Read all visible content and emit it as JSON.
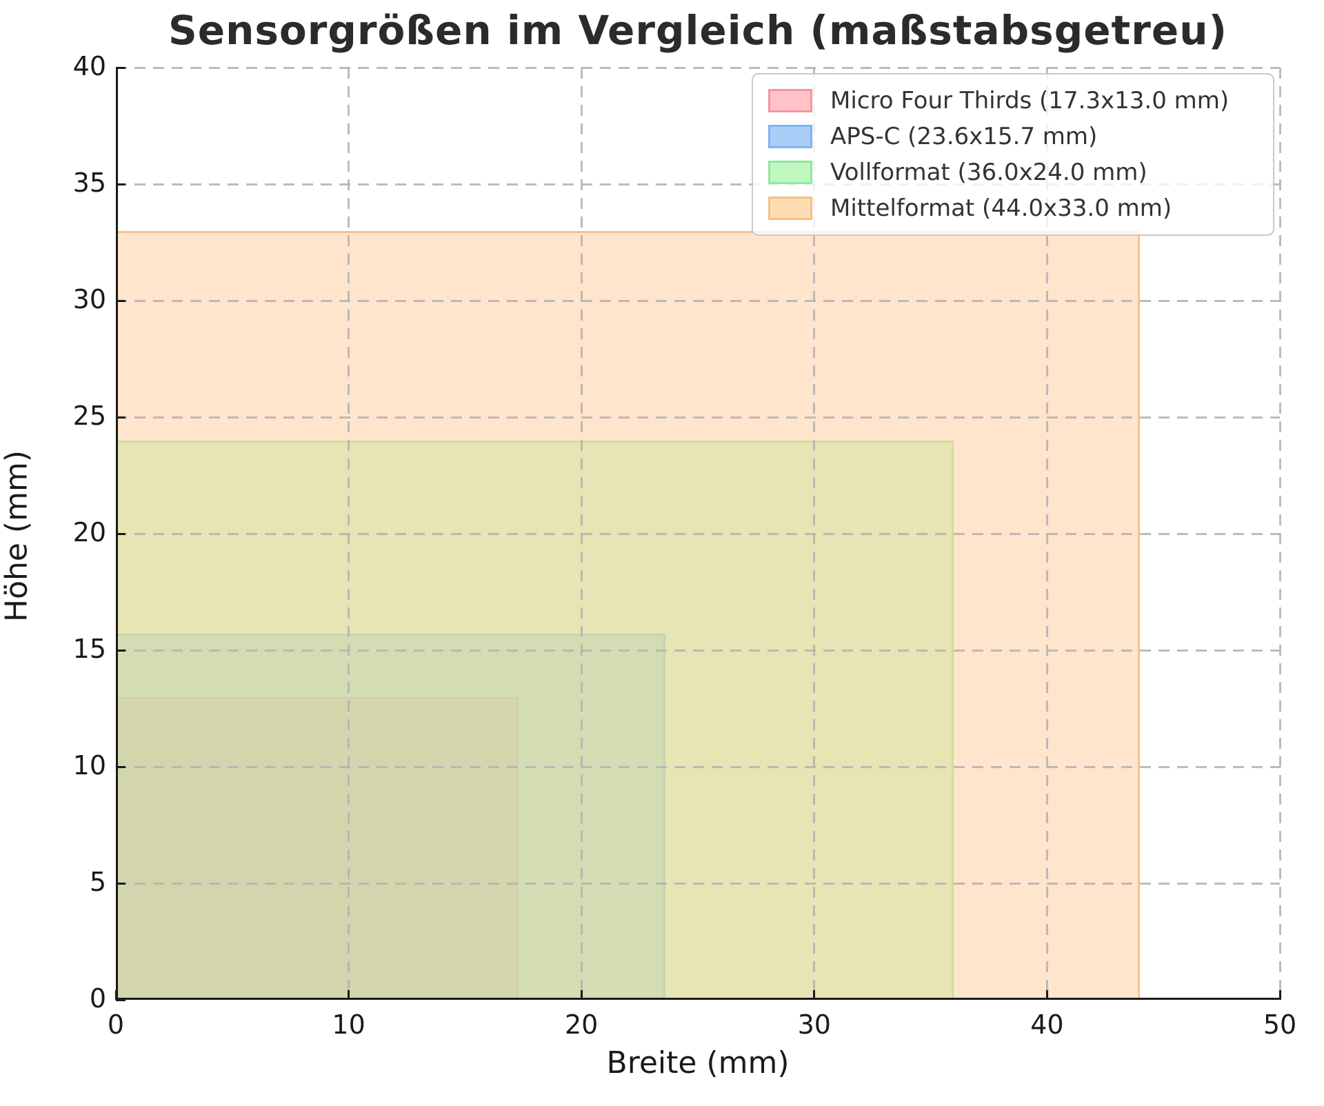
{
  "figure": {
    "title": "Sensorgrößen im Vergleich (maßstabsgetreu)"
  },
  "chart_data": {
    "type": "area",
    "subtype": "nested-rectangles-to-scale",
    "title": "Sensorgrößen im Vergleich (maßstabsgetreu)",
    "xlabel": "Breite (mm)",
    "ylabel": "Höhe (mm)",
    "xlim": [
      0,
      50
    ],
    "ylim": [
      0,
      40
    ],
    "xticks": [
      0,
      10,
      20,
      30,
      40,
      50
    ],
    "yticks": [
      0,
      5,
      10,
      15,
      20,
      25,
      30,
      35,
      40
    ],
    "grid": true,
    "grid_style": "dashed",
    "grid_color": "#b4b4b4",
    "legend_position": "upper-right",
    "series": [
      {
        "name": "Micro Four Thirds",
        "legend_label": "Micro Four Thirds (17.3x13.0 mm)",
        "width_mm": 17.3,
        "height_mm": 13.0,
        "x0_mm": 0,
        "y0_mm": 0,
        "fill": "rgba(255,153,153,0.5)",
        "edge": "rgba(246,130,140,0.55)",
        "swatch_fill": "#ffc2c6",
        "swatch_edge": "#f2959d"
      },
      {
        "name": "APS-C",
        "legend_label": "APS-C (23.6x15.7 mm)",
        "width_mm": 23.6,
        "height_mm": 15.7,
        "x0_mm": 0,
        "y0_mm": 0,
        "fill": "rgba(102,179,255,0.5)",
        "edge": "rgba(74,152,243,0.55)",
        "swatch_fill": "#a9cef7",
        "swatch_edge": "#7fb3f0"
      },
      {
        "name": "Vollformat",
        "legend_label": "Vollformat (36.0x24.0 mm)",
        "width_mm": 36.0,
        "height_mm": 24.0,
        "x0_mm": 0,
        "y0_mm": 0,
        "fill": "rgba(153,255,153,0.5)",
        "edge": "rgba(118,230,128,0.55)",
        "swatch_fill": "#bef8be",
        "swatch_edge": "#92e79a"
      },
      {
        "name": "Mittelformat",
        "legend_label": "Mittelformat (44.0x33.0 mm)",
        "width_mm": 44.0,
        "height_mm": 33.0,
        "x0_mm": 0,
        "y0_mm": 0,
        "fill": "rgba(255,204,153,0.5)",
        "edge": "rgba(250,178,112,0.7)",
        "swatch_fill": "#ffddb4",
        "swatch_edge": "#f7c083"
      }
    ]
  }
}
